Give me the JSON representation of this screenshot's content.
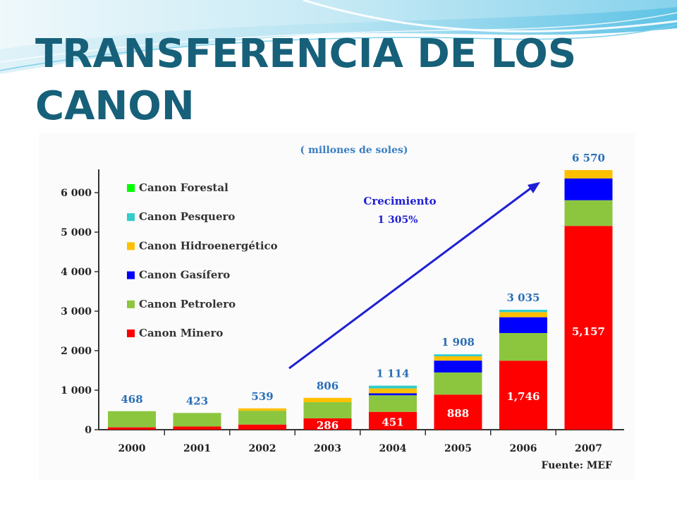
{
  "slide": {
    "title_line1": "TRANSFERENCIA DE LOS",
    "title_line2": "CANON"
  },
  "chart_data": {
    "type": "bar",
    "stacked": true,
    "subtitle": "( millones de soles)",
    "source": "Fuente: MEF",
    "categories": [
      "2000",
      "2001",
      "2002",
      "2003",
      "2004",
      "2005",
      "2006",
      "2007"
    ],
    "totals": [
      468,
      423,
      539,
      806,
      1114,
      1908,
      3035,
      6570
    ],
    "total_labels": [
      "468",
      "423",
      "539",
      "806",
      "1 114",
      "1 908",
      "3 035",
      "6 570"
    ],
    "ylim": [
      0,
      6500
    ],
    "yticks": [
      0,
      1000,
      2000,
      3000,
      4000,
      5000,
      6000
    ],
    "ytick_labels": [
      "0",
      "1 000",
      "2 000",
      "3 000",
      "4 000",
      "5 000",
      "6 000"
    ],
    "series": [
      {
        "name": "Canon Minero",
        "color": "#ff0000",
        "values": [
          60,
          80,
          130,
          286,
          451,
          888,
          1746,
          5157
        ],
        "value_labels": [
          "",
          "",
          "",
          "286",
          "451",
          "888",
          "1,746",
          "5,157"
        ]
      },
      {
        "name": "Canon Petrolero",
        "color": "#8cc63f",
        "values": [
          408,
          343,
          350,
          410,
          420,
          560,
          700,
          650
        ]
      },
      {
        "name": "Canon Gasífero",
        "color": "#0000ff",
        "values": [
          0,
          0,
          0,
          0,
          50,
          300,
          400,
          550
        ]
      },
      {
        "name": "Canon Hidroenergético",
        "color": "#ffc000",
        "values": [
          0,
          0,
          59,
          110,
          123,
          110,
          129,
          213
        ]
      },
      {
        "name": "Canon Pesquero",
        "color": "#33cccc",
        "values": [
          0,
          0,
          0,
          0,
          70,
          50,
          60,
          0
        ]
      },
      {
        "name": "Canon Forestal",
        "color": "#00ff00",
        "values": [
          0,
          0,
          0,
          0,
          0,
          0,
          0,
          0
        ]
      }
    ],
    "legend_order": [
      "Canon Forestal",
      "Canon Pesquero",
      "Canon Hidroenergético",
      "Canon Gasífero",
      "Canon Petrolero",
      "Canon Minero"
    ],
    "annotation": {
      "line1": "Crecimiento",
      "line2": "1 305%",
      "color": "#1f1fd6"
    },
    "legend_position": "top-left",
    "grid": false
  }
}
